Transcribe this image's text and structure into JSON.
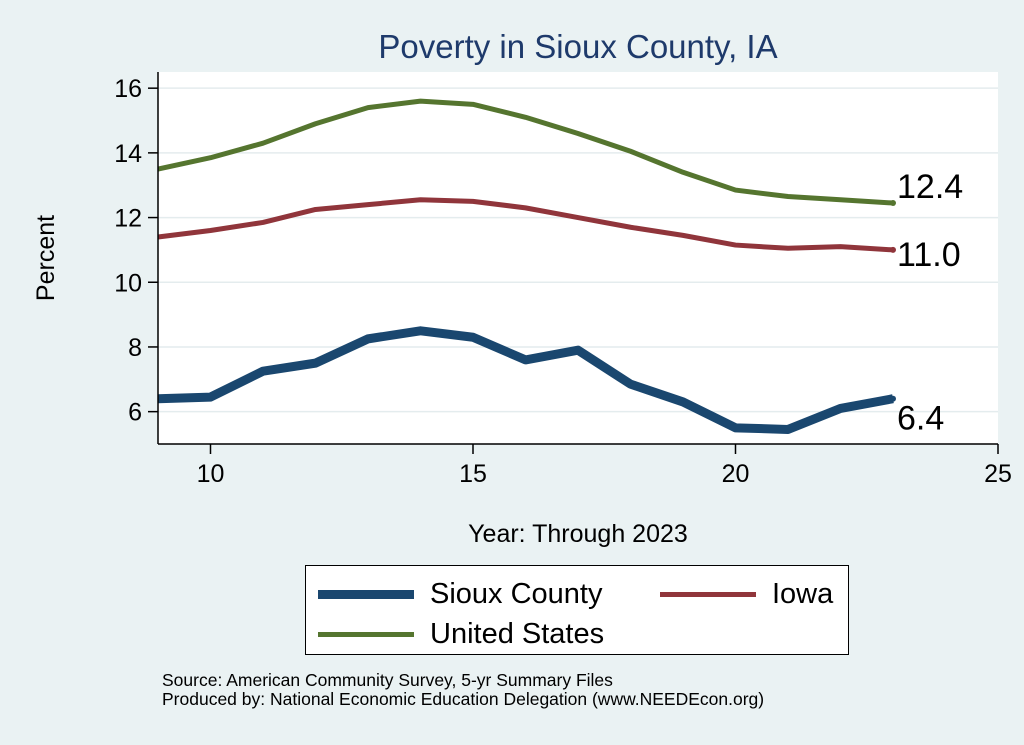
{
  "chart_data": {
    "type": "line",
    "title": "Poverty in Sioux County, IA",
    "xlabel": "Year: Through 2023",
    "ylabel": "Percent",
    "xlim": [
      9,
      25
    ],
    "ylim": [
      5,
      16.5
    ],
    "xticks": [
      10,
      15,
      20,
      25
    ],
    "yticks": [
      6,
      8,
      10,
      12,
      14,
      16
    ],
    "grid": true,
    "legend_position": "bottom",
    "x": [
      9,
      10,
      11,
      12,
      13,
      14,
      15,
      16,
      17,
      18,
      19,
      20,
      21,
      22,
      23
    ],
    "series": [
      {
        "name": "Sioux County",
        "color": "#1a476f",
        "values": [
          6.4,
          6.45,
          7.25,
          7.5,
          8.25,
          8.5,
          8.3,
          7.6,
          7.9,
          6.85,
          6.3,
          5.5,
          5.45,
          6.1,
          6.4
        ],
        "end_label": "6.4"
      },
      {
        "name": "Iowa",
        "color": "#90353b",
        "values": [
          11.4,
          11.6,
          11.85,
          12.25,
          12.4,
          12.55,
          12.5,
          12.3,
          12.0,
          11.7,
          11.45,
          11.15,
          11.05,
          11.1,
          11.0
        ],
        "end_label": "11.0"
      },
      {
        "name": "United States",
        "color": "#55752f",
        "values": [
          13.5,
          13.85,
          14.3,
          14.9,
          15.4,
          15.6,
          15.5,
          15.1,
          14.6,
          14.05,
          13.4,
          12.85,
          12.65,
          12.55,
          12.45
        ],
        "end_label": "12.4"
      }
    ]
  },
  "source_note": {
    "line1": "Source: American Community Survey, 5-yr Summary Files",
    "line2": "Produced by: National Economic Education Delegation (www.NEEDEcon.org)"
  }
}
